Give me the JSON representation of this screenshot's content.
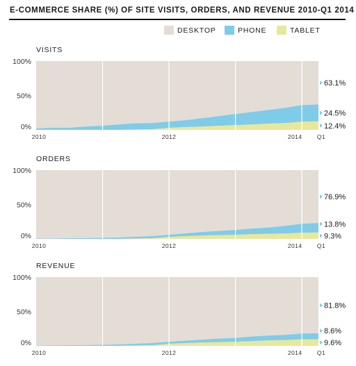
{
  "title": "E-COMMERCE SHARE (%) OF SITE VISITS, ORDERS, AND REVENUE 2010-Q1 2014",
  "colors": {
    "desktop": "#e3ddd6",
    "phone": "#7fcbea",
    "tablet": "#e8e89a",
    "gridline": "#ffffff",
    "marker": "#7fcbea"
  },
  "legend": [
    {
      "key": "desktop",
      "label": "DESKTOP",
      "color": "#e3ddd6"
    },
    {
      "key": "phone",
      "label": "PHONE",
      "color": "#7fcbea"
    },
    {
      "key": "tablet",
      "label": "TABLET",
      "color": "#e8e89a"
    }
  ],
  "chart_data": [
    {
      "type": "area",
      "title": "VISITS",
      "stacked": true,
      "ylim": [
        0,
        100
      ],
      "y_ticks": [
        "100%",
        "50%",
        "0%"
      ],
      "x_ticks": [
        "2010",
        "2012",
        "2014",
        "Q1"
      ],
      "x": [
        2010.0,
        2010.25,
        2010.5,
        2010.75,
        2011.0,
        2011.25,
        2011.5,
        2011.75,
        2012.0,
        2012.25,
        2012.5,
        2012.75,
        2013.0,
        2013.25,
        2013.5,
        2013.75,
        2014.0,
        2014.25
      ],
      "series": [
        {
          "name": "TABLET",
          "values": [
            0,
            0,
            0,
            0,
            0,
            0,
            0.5,
            1,
            3,
            4,
            5,
            6,
            7,
            8,
            9,
            10,
            12,
            12.4
          ]
        },
        {
          "name": "PHONE",
          "values": [
            2,
            3,
            3,
            5,
            6,
            8,
            9,
            9,
            9,
            10,
            12,
            14,
            16,
            18,
            20,
            22,
            24,
            24.5
          ]
        },
        {
          "name": "DESKTOP",
          "values": [
            98,
            97,
            97,
            95,
            94,
            92,
            90.5,
            90,
            88,
            86,
            83,
            80,
            77,
            74,
            71,
            68,
            64,
            63.1
          ]
        }
      ],
      "end_labels": [
        "63.1%",
        "24.5%",
        "12.4%"
      ]
    },
    {
      "type": "area",
      "title": "ORDERS",
      "stacked": true,
      "ylim": [
        0,
        100
      ],
      "y_ticks": [
        "100%",
        "50%",
        "0%"
      ],
      "x_ticks": [
        "2010",
        "2012",
        "2014",
        "Q1"
      ],
      "x": [
        2010.0,
        2010.25,
        2010.5,
        2010.75,
        2011.0,
        2011.25,
        2011.5,
        2011.75,
        2012.0,
        2012.25,
        2012.5,
        2012.75,
        2013.0,
        2013.25,
        2013.5,
        2013.75,
        2014.0,
        2014.25
      ],
      "series": [
        {
          "name": "TABLET",
          "values": [
            0,
            0,
            0,
            0,
            0,
            0,
            0.5,
            1,
            3,
            4,
            5,
            5.5,
            6,
            7,
            7.5,
            8,
            9,
            9.3
          ]
        },
        {
          "name": "PHONE",
          "values": [
            0.5,
            0.5,
            1,
            1,
            1.5,
            2,
            2.5,
            3,
            3,
            4,
            5,
            6,
            7,
            8,
            9,
            11,
            13,
            13.8
          ]
        },
        {
          "name": "DESKTOP",
          "values": [
            99.5,
            99.5,
            99,
            99,
            98.5,
            98,
            97,
            96,
            94,
            92,
            90,
            88.5,
            87,
            85,
            83.5,
            81,
            78,
            76.9
          ]
        }
      ],
      "end_labels": [
        "76.9%",
        "13.8%",
        "9.3%"
      ]
    },
    {
      "type": "area",
      "title": "REVENUE",
      "stacked": true,
      "ylim": [
        0,
        100
      ],
      "y_ticks": [
        "100%",
        "50%",
        "0%"
      ],
      "x_ticks": [
        "2010",
        "2012",
        "2014",
        "Q1"
      ],
      "x": [
        2010.0,
        2010.25,
        2010.5,
        2010.75,
        2011.0,
        2011.25,
        2011.5,
        2011.75,
        2012.0,
        2012.25,
        2012.5,
        2012.75,
        2013.0,
        2013.25,
        2013.5,
        2013.75,
        2014.0,
        2014.25
      ],
      "series": [
        {
          "name": "TABLET",
          "values": [
            0,
            0,
            0,
            0,
            0,
            0,
            0.5,
            1,
            3,
            4,
            5,
            5.5,
            6,
            7,
            8,
            8.5,
            9.5,
            9.6
          ]
        },
        {
          "name": "PHONE",
          "values": [
            0.5,
            0.5,
            1,
            1,
            1.5,
            2,
            2.5,
            3,
            3,
            3.5,
            4,
            5,
            5.5,
            6.5,
            7,
            7.5,
            8.5,
            8.6
          ]
        },
        {
          "name": "DESKTOP",
          "values": [
            99.5,
            99.5,
            99,
            99,
            98.5,
            98,
            97,
            96,
            94,
            92.5,
            91,
            89.5,
            88.5,
            86.5,
            85,
            84,
            82,
            81.8
          ]
        }
      ],
      "end_labels": [
        "81.8%",
        "8.6%",
        "9.6%"
      ]
    }
  ]
}
